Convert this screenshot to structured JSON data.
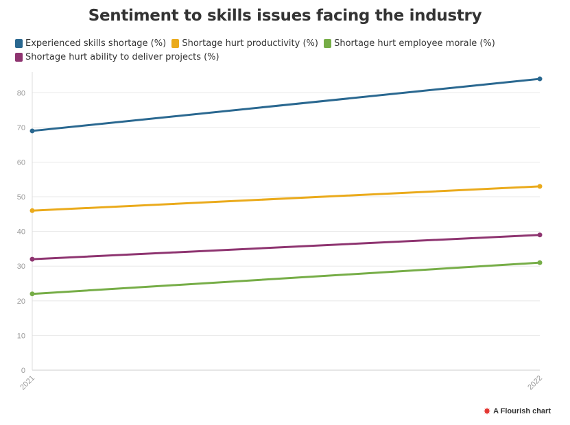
{
  "chart_data": {
    "type": "line",
    "title": "Sentiment to skills issues facing the industry",
    "x": [
      "2021",
      "2022"
    ],
    "ylim": [
      0,
      85
    ],
    "yticks": [
      0,
      10,
      20,
      30,
      40,
      50,
      60,
      70,
      80
    ],
    "grid": true,
    "legend_position": "top-left",
    "series": [
      {
        "name": "Experienced skills shortage (%)",
        "color": "#2a6890",
        "values": [
          69,
          84
        ]
      },
      {
        "name": "Shortage hurt productivity (%)",
        "color": "#eaaa1b",
        "values": [
          46,
          53
        ]
      },
      {
        "name": "Shortage hurt employee morale (%)",
        "color": "#76ad47",
        "values": [
          22,
          31
        ]
      },
      {
        "name": "Shortage hurt ability to deliver projects (%)",
        "color": "#8e3470",
        "values": [
          32,
          39
        ]
      }
    ]
  },
  "footer": {
    "label": "A Flourish chart",
    "icon": "flourish-logo-icon"
  }
}
